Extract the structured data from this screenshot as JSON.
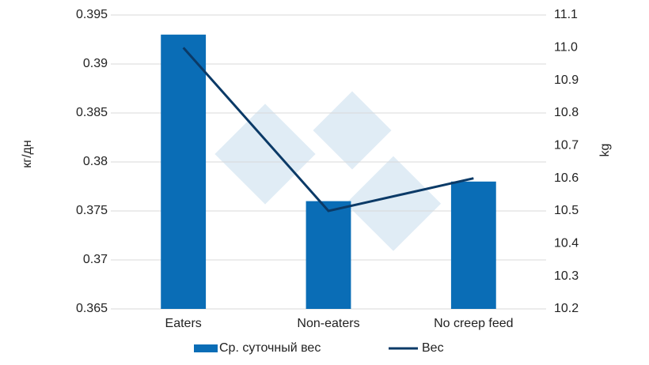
{
  "chart_data": {
    "type": "bar",
    "categories": [
      "Eaters",
      "Non-eaters",
      "No creep feed"
    ],
    "series": [
      {
        "name": "Ср. суточный вес",
        "type": "bar",
        "color": "#0a6db6",
        "values": [
          0.393,
          0.376,
          0.378
        ]
      },
      {
        "name": "Вес",
        "type": "line",
        "axis": "y2",
        "color": "#0b3a67",
        "values": [
          11.0,
          10.5,
          10.6
        ]
      }
    ],
    "ylabel": "кг/дн",
    "y2label": "kg",
    "ylim": [
      0.365,
      0.395
    ],
    "yticks": [
      0.365,
      0.37,
      0.375,
      0.38,
      0.385,
      0.39,
      0.395
    ],
    "y2lim": [
      10.2,
      11.1
    ],
    "y2ticks": [
      10.2,
      10.3,
      10.4,
      10.5,
      10.6,
      10.7,
      10.8,
      10.9,
      {
        "value": 11,
        "label": "11.0"
      },
      11.1
    ],
    "grid": true,
    "legend": "bottom"
  }
}
